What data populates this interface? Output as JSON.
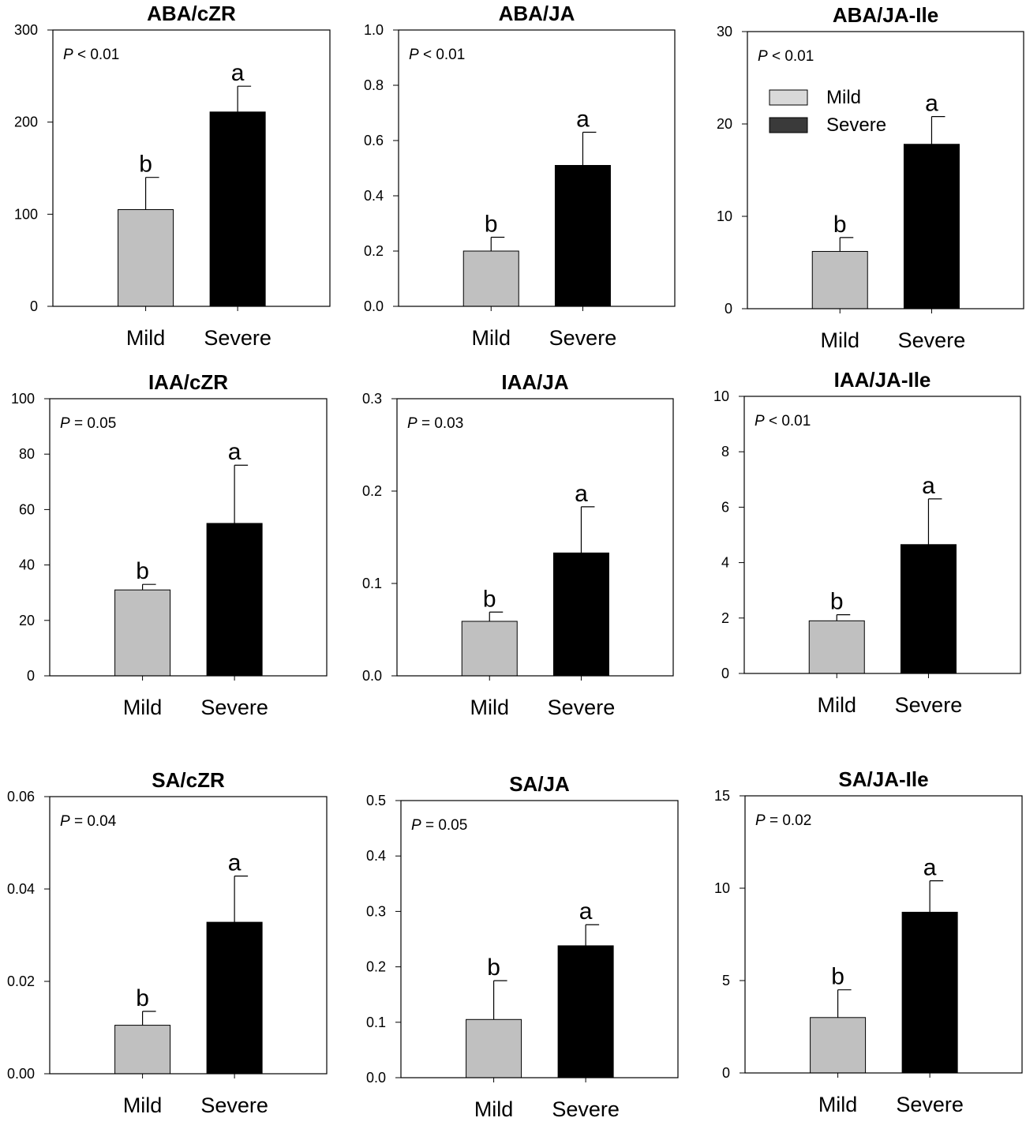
{
  "legend": {
    "entries": [
      {
        "name": "Mild",
        "color": "#d9d9d9"
      },
      {
        "name": "Severe",
        "color": "#3a3a3a"
      }
    ]
  },
  "colors": {
    "mild_bar": "#c0c0c0",
    "severe_bar": "#000000",
    "axis": "#000000"
  },
  "chart_data": [
    {
      "type": "bar",
      "title": "ABA/cZR",
      "p_label": "P",
      "p_text": " < 0.01",
      "categories": [
        "Mild",
        "Severe"
      ],
      "values": [
        105,
        211
      ],
      "errors": [
        35,
        28
      ],
      "letters": [
        "b",
        "a"
      ],
      "ylim": [
        0,
        300
      ],
      "yticks": [
        0,
        100,
        200,
        300
      ],
      "tick_labels": [
        "0",
        "100",
        "200",
        "300"
      ]
    },
    {
      "type": "bar",
      "title": "ABA/JA",
      "p_label": "P",
      "p_text": " < 0.01",
      "categories": [
        "Mild",
        "Severe"
      ],
      "values": [
        0.2,
        0.51
      ],
      "errors": [
        0.05,
        0.12
      ],
      "letters": [
        "b",
        "a"
      ],
      "ylim": [
        0,
        1.0
      ],
      "yticks": [
        0,
        0.2,
        0.4,
        0.6,
        0.8,
        1.0
      ],
      "tick_labels": [
        "0.0",
        "0.2",
        "0.4",
        "0.6",
        "0.8",
        "1.0"
      ]
    },
    {
      "type": "bar",
      "title": "ABA/JA-Ile",
      "p_label": "P",
      "p_text": " < 0.01",
      "categories": [
        "Mild",
        "Severe"
      ],
      "values": [
        6.2,
        17.8
      ],
      "errors": [
        1.5,
        3.0
      ],
      "letters": [
        "b",
        "a"
      ],
      "ylim": [
        0,
        30
      ],
      "yticks": [
        0,
        10,
        20,
        30
      ],
      "tick_labels": [
        "0",
        "10",
        "20",
        "30"
      ],
      "show_legend": true
    },
    {
      "type": "bar",
      "title": "IAA/cZR",
      "p_label": "P",
      "p_text": " = 0.05",
      "categories": [
        "Mild",
        "Severe"
      ],
      "values": [
        31,
        55
      ],
      "errors": [
        2,
        21
      ],
      "letters": [
        "b",
        "a"
      ],
      "ylim": [
        0,
        100
      ],
      "yticks": [
        0,
        20,
        40,
        60,
        80,
        100
      ],
      "tick_labels": [
        "0",
        "20",
        "40",
        "60",
        "80",
        "100"
      ]
    },
    {
      "type": "bar",
      "title": "IAA/JA",
      "p_label": "P",
      "p_text": " = 0.03",
      "categories": [
        "Mild",
        "Severe"
      ],
      "values": [
        0.059,
        0.133
      ],
      "errors": [
        0.01,
        0.05
      ],
      "letters": [
        "b",
        "a"
      ],
      "ylim": [
        0,
        0.3
      ],
      "yticks": [
        0,
        0.1,
        0.2,
        0.3
      ],
      "tick_labels": [
        "0.0",
        "0.1",
        "0.2",
        "0.3"
      ]
    },
    {
      "type": "bar",
      "title": "IAA/JA-Ile",
      "p_label": "P",
      "p_text": " < 0.01",
      "categories": [
        "Mild",
        "Severe"
      ],
      "values": [
        1.9,
        4.65
      ],
      "errors": [
        0.22,
        1.65
      ],
      "letters": [
        "b",
        "a"
      ],
      "ylim": [
        0,
        10
      ],
      "yticks": [
        0,
        2,
        4,
        6,
        8,
        10
      ],
      "tick_labels": [
        "0",
        "2",
        "4",
        "6",
        "8",
        "10"
      ]
    },
    {
      "type": "bar",
      "title": "SA/cZR",
      "p_label": "P",
      "p_text": " = 0.04",
      "categories": [
        "Mild",
        "Severe"
      ],
      "values": [
        0.0105,
        0.0328
      ],
      "errors": [
        0.003,
        0.01
      ],
      "letters": [
        "b",
        "a"
      ],
      "ylim": [
        0,
        0.06
      ],
      "yticks": [
        0,
        0.02,
        0.04,
        0.06
      ],
      "tick_labels": [
        "0.00",
        "0.02",
        "0.04",
        "0.06"
      ]
    },
    {
      "type": "bar",
      "title": "SA/JA",
      "p_label": "P",
      "p_text": " = 0.05",
      "categories": [
        "Mild",
        "Severe"
      ],
      "values": [
        0.105,
        0.238
      ],
      "errors": [
        0.07,
        0.038
      ],
      "letters": [
        "b",
        "a"
      ],
      "ylim": [
        0,
        0.5
      ],
      "yticks": [
        0,
        0.1,
        0.2,
        0.3,
        0.4,
        0.5
      ],
      "tick_labels": [
        "0.0",
        "0.1",
        "0.2",
        "0.3",
        "0.4",
        "0.5"
      ]
    },
    {
      "type": "bar",
      "title": "SA/JA-Ile",
      "p_label": "P",
      "p_text": " = 0.02",
      "categories": [
        "Mild",
        "Severe"
      ],
      "values": [
        3.0,
        8.7
      ],
      "errors": [
        1.5,
        1.7
      ],
      "letters": [
        "b",
        "a"
      ],
      "ylim": [
        0,
        15
      ],
      "yticks": [
        0,
        5,
        10,
        15
      ],
      "tick_labels": [
        "0",
        "5",
        "10",
        "15"
      ]
    }
  ]
}
